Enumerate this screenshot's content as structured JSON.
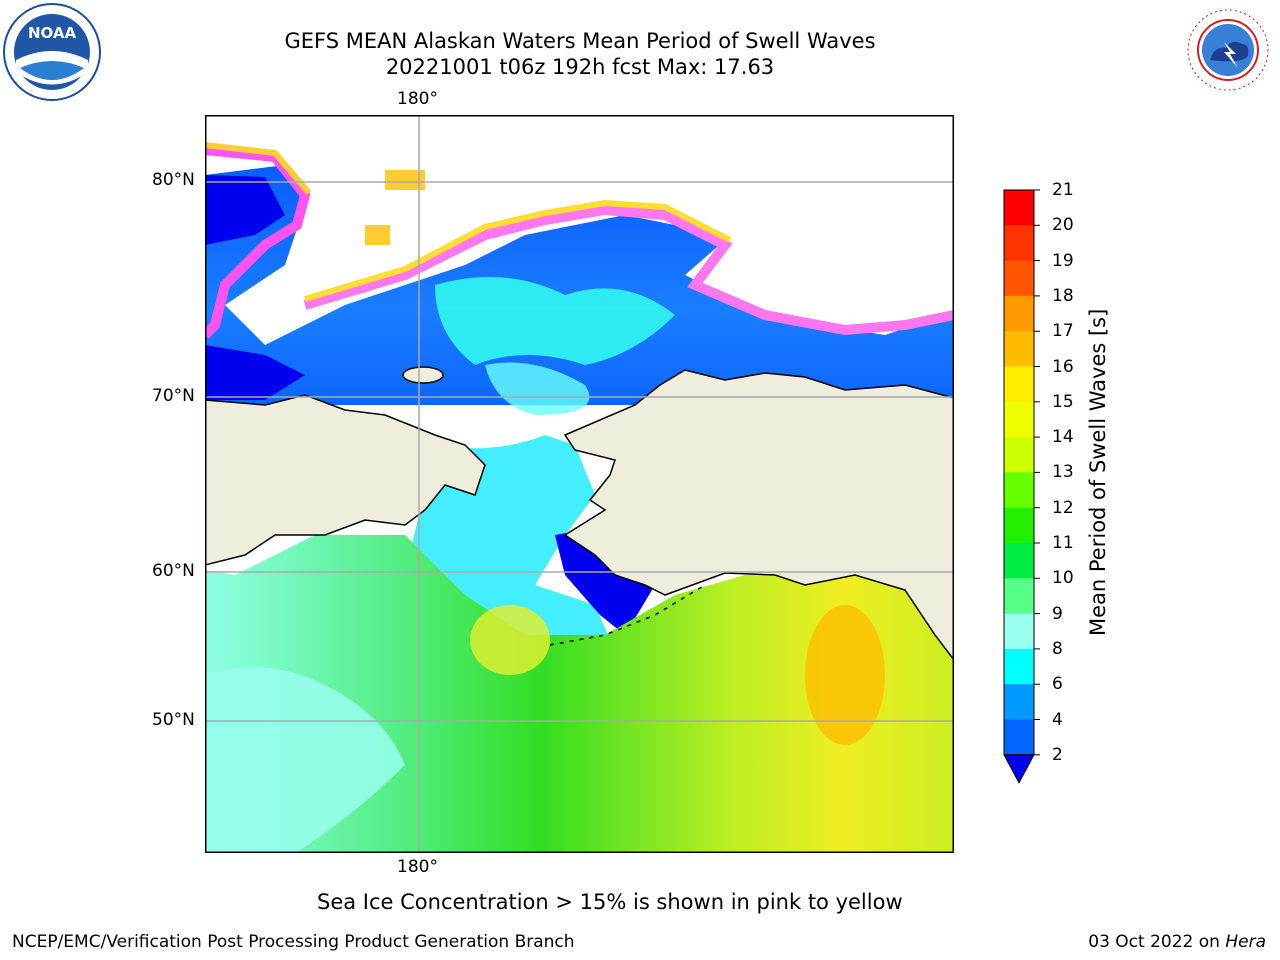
{
  "title": {
    "line1": "GEFS MEAN Alaskan Waters Mean Period of Swell Waves",
    "line2": "20221001 t06z 192h fcst   Max: 17.63"
  },
  "logos": {
    "left": "NOAA",
    "right": "NATIONAL WEATHER SERVICE"
  },
  "map": {
    "lon_label_top": "180°",
    "lon_label_bottom": "180°",
    "lat_labels": [
      "80°N",
      "70°N",
      "60°N",
      "50°N"
    ],
    "colors": {
      "land": "#efeedd",
      "grid": "#aaaaaa",
      "coast": "#000000"
    }
  },
  "colorbar": {
    "label": "Mean Period of Swell Waves [s]",
    "ticks": [
      "21",
      "20",
      "19",
      "18",
      "17",
      "16",
      "15",
      "14",
      "13",
      "12",
      "11",
      "10",
      "9",
      "8",
      "6",
      "4",
      "2"
    ],
    "colors": [
      "#ff0000",
      "#ff3300",
      "#ff5500",
      "#ff7700",
      "#ff9900",
      "#ffbb00",
      "#ffee00",
      "#eeff00",
      "#ccff00",
      "#aaff00",
      "#66ff00",
      "#22ee00",
      "#00ee44",
      "#55ff88",
      "#99ffee",
      "#44ffff",
      "#00ffff",
      "#0099ff",
      "#0066ff",
      "#0000ee"
    ]
  },
  "caption": "Sea Ice Concentration > 15% is shown in pink to yellow",
  "footer": {
    "left": "NCEP/EMC/Verification Post Processing Product Generation Branch",
    "right_prefix": "03 Oct 2022 on ",
    "right_host": "Hera"
  }
}
